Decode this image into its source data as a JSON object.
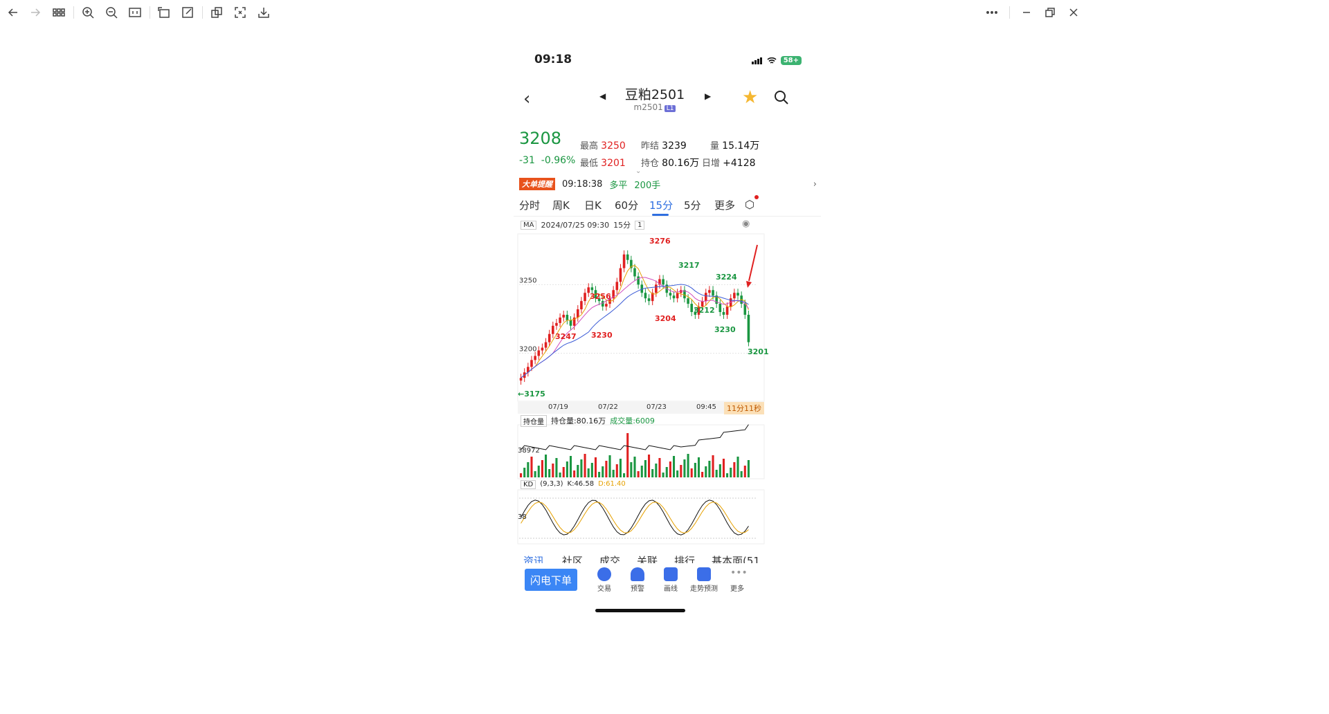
{
  "viewer": {
    "toolbar_icons": [
      "back-icon",
      "forward-icon",
      "grid-icon",
      "zoom-in-icon",
      "zoom-out-icon",
      "fit-icon",
      "rotate-icon",
      "edit-icon",
      "copy-icon",
      "fullscreen-icon",
      "download-icon",
      "more-icon",
      "minimize-icon",
      "restore-icon",
      "close-icon"
    ]
  },
  "status": {
    "time": "09:18",
    "battery": "58+"
  },
  "nav": {
    "title": "豆粕2501",
    "subtitle": "m2501",
    "badge": "L1"
  },
  "quote": {
    "price": "3208",
    "change": "-31",
    "change_pct": "-0.96%",
    "high_label": "最高",
    "high": "3250",
    "low_label": "最低",
    "low": "3201",
    "prev_settle_label": "昨结",
    "prev_settle": "3239",
    "open_interest_label": "持仓",
    "open_interest": "80.16万",
    "volume_label": "量",
    "volume": "15.14万",
    "daily_inc_label": "日增",
    "daily_inc": "+4128"
  },
  "alert": {
    "tag": "大单提醒",
    "time": "09:18:38",
    "type": "多平",
    "qty": "200手"
  },
  "tabs": [
    "分时",
    "周K",
    "日K",
    "60分",
    "15分",
    "5分",
    "更多"
  ],
  "chart_head": {
    "indicator": "MA",
    "datetime": "2024/07/25 09:30",
    "period": "15分",
    "count": "1"
  },
  "time_axis": {
    "labels": [
      "07/19",
      "07/22",
      "07/23",
      "09:45"
    ],
    "timer": "11分11秒"
  },
  "volume_head": {
    "label": "持仓量",
    "oi": "持仓量:80.16万",
    "vol": "成交量:6009",
    "axis": "38972"
  },
  "kd_head": {
    "label": "KD",
    "params": "(9,3,3)",
    "k": "K:46.58",
    "d": "D:61.40",
    "axis": "38"
  },
  "bottom_tabs": [
    "资讯",
    "社区",
    "成交",
    "关联",
    "排行",
    "基本面(51"
  ],
  "bottom_bar": {
    "flash": "闪电下单",
    "items": [
      {
        "label": "交易",
        "color": "#3b6ee8"
      },
      {
        "label": "预警",
        "color": "#3b6ee8"
      },
      {
        "label": "画线",
        "color": "#3b6ee8"
      },
      {
        "label": "走势预测",
        "color": "#3b6ee8"
      },
      {
        "label": "更多",
        "color": "#999999"
      }
    ]
  },
  "chart_data": {
    "type": "candlestick",
    "title": "",
    "y_axis_labels": [
      "3250",
      "3200"
    ],
    "y_range": [
      3175,
      3285
    ],
    "price_labels": [
      {
        "value": "3276",
        "kind": "high"
      },
      {
        "value": "3256",
        "kind": "high"
      },
      {
        "value": "3247",
        "kind": "high"
      },
      {
        "value": "3230",
        "kind": "high"
      },
      {
        "value": "3204",
        "kind": "high"
      },
      {
        "value": "3212",
        "kind": "low"
      },
      {
        "value": "3224",
        "kind": "low"
      },
      {
        "value": "3230",
        "kind": "low"
      },
      {
        "value": "3217",
        "kind": "low"
      },
      {
        "value": "3201",
        "kind": "low"
      }
    ],
    "left_marker": "←3175",
    "closes": [
      3182,
      3186,
      3190,
      3195,
      3198,
      3202,
      3204,
      3208,
      3214,
      3220,
      3222,
      3226,
      3228,
      3224,
      3220,
      3226,
      3232,
      3238,
      3244,
      3248,
      3246,
      3240,
      3238,
      3234,
      3236,
      3240,
      3246,
      3252,
      3262,
      3272,
      3268,
      3262,
      3256,
      3250,
      3244,
      3240,
      3238,
      3244,
      3250,
      3254,
      3250,
      3244,
      3242,
      3240,
      3244,
      3246,
      3240,
      3236,
      3230,
      3228,
      3234,
      3238,
      3244,
      3246,
      3242,
      3236,
      3230,
      3228,
      3234,
      3240,
      3244,
      3242,
      3236,
      3228,
      3208
    ]
  }
}
